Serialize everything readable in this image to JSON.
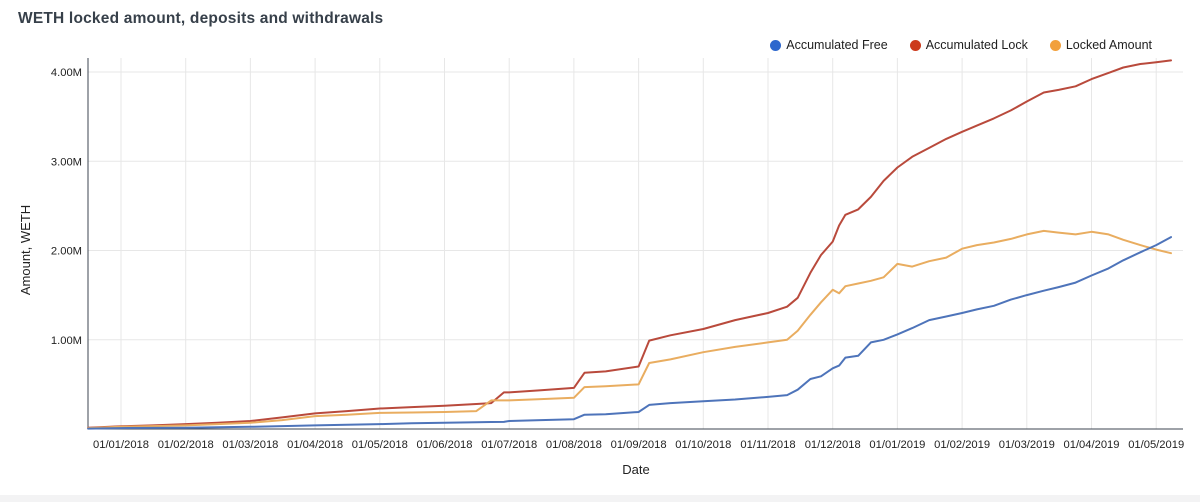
{
  "title": "WETH locked amount, deposits and withdrawals",
  "axes": {
    "x_label": "Date",
    "y_label": "Amount, WETH",
    "y_tick_labels": [
      "1.00M",
      "2.00M",
      "3.00M",
      "4.00M"
    ],
    "y_tick_values_m": [
      1,
      2,
      3,
      4
    ]
  },
  "style": {
    "grid_color": "#e7e7e7",
    "axis_color": "#3c4650",
    "background": "#ffffff"
  },
  "chart_data": {
    "type": "line",
    "title": "WETH locked amount, deposits and withdrawals",
    "xlabel": "Date",
    "ylabel": "Amount, WETH",
    "ylim_m": [
      0,
      4.2
    ],
    "grid": true,
    "legend_position": "top-right",
    "x_tick_labels": [
      "01/01/2018",
      "01/02/2018",
      "01/03/2018",
      "01/04/2018",
      "01/05/2018",
      "01/06/2018",
      "01/07/2018",
      "01/08/2018",
      "01/09/2018",
      "01/10/2018",
      "01/11/2018",
      "01/12/2018",
      "01/01/2019",
      "01/02/2019",
      "01/03/2019",
      "01/04/2019",
      "01/05/2019"
    ],
    "x": [
      "12/16/2017",
      "01/01/2018",
      "01/16/2018",
      "02/01/2018",
      "02/16/2018",
      "03/01/2018",
      "03/16/2018",
      "04/01/2018",
      "04/16/2018",
      "05/01/2018",
      "05/16/2018",
      "06/01/2018",
      "06/16/2018",
      "06/23/2018",
      "06/29/2018",
      "07/01/2018",
      "07/16/2018",
      "08/01/2018",
      "08/06/2018",
      "08/16/2018",
      "09/01/2018",
      "09/06/2018",
      "09/16/2018",
      "10/01/2018",
      "10/16/2018",
      "11/01/2018",
      "11/10/2018",
      "11/15/2018",
      "11/21/2018",
      "11/26/2018",
      "12/01/2018",
      "12/04/2018",
      "12/07/2018",
      "12/13/2018",
      "12/19/2018",
      "12/25/2018",
      "01/01/2019",
      "01/08/2019",
      "01/16/2019",
      "01/24/2019",
      "02/01/2019",
      "02/08/2019",
      "02/16/2019",
      "02/24/2019",
      "03/01/2019",
      "03/09/2019",
      "03/16/2019",
      "03/24/2019",
      "04/01/2019",
      "04/09/2019",
      "04/16/2019",
      "04/24/2019",
      "05/01/2019",
      "05/08/2019"
    ],
    "units": "values in millions of WETH",
    "series": [
      {
        "name": "Accumulated Free",
        "color": "#2d67cd",
        "line_color": "#4e74ba",
        "values_m": [
          0.005,
          0.01,
          0.012,
          0.015,
          0.02,
          0.025,
          0.032,
          0.04,
          0.048,
          0.055,
          0.065,
          0.07,
          0.075,
          0.078,
          0.08,
          0.09,
          0.1,
          0.11,
          0.16,
          0.165,
          0.19,
          0.27,
          0.29,
          0.31,
          0.33,
          0.36,
          0.38,
          0.44,
          0.56,
          0.59,
          0.68,
          0.71,
          0.8,
          0.82,
          0.97,
          1.0,
          1.06,
          1.13,
          1.22,
          1.26,
          1.3,
          1.34,
          1.38,
          1.45,
          1.5,
          1.55,
          1.59,
          1.64,
          1.72,
          1.8,
          1.89,
          1.98,
          2.06,
          2.15
        ]
      },
      {
        "name": "Accumulated Lock",
        "color": "#cc3a1c",
        "line_color": "#b94a3c",
        "values_m": [
          0.015,
          0.03,
          0.04,
          0.055,
          0.07,
          0.09,
          0.13,
          0.175,
          0.2,
          0.23,
          0.245,
          0.26,
          0.28,
          0.29,
          0.41,
          0.41,
          0.435,
          0.46,
          0.63,
          0.645,
          0.7,
          0.99,
          1.05,
          1.12,
          1.22,
          1.3,
          1.37,
          1.47,
          1.75,
          1.95,
          2.1,
          2.28,
          2.4,
          2.46,
          2.6,
          2.78,
          2.93,
          3.05,
          3.15,
          3.25,
          3.33,
          3.4,
          3.48,
          3.57,
          3.67,
          3.77,
          3.8,
          3.84,
          3.92,
          3.99,
          4.05,
          4.09,
          4.11,
          4.13
        ]
      },
      {
        "name": "Locked Amount",
        "color": "#f2a03c",
        "line_color": "#e9ad60",
        "values_m": [
          0.01,
          0.025,
          0.032,
          0.04,
          0.055,
          0.07,
          0.1,
          0.145,
          0.16,
          0.18,
          0.185,
          0.19,
          0.2,
          0.32,
          0.32,
          0.32,
          0.335,
          0.35,
          0.47,
          0.48,
          0.5,
          0.74,
          0.78,
          0.86,
          0.92,
          0.97,
          1.0,
          1.1,
          1.28,
          1.42,
          1.56,
          1.52,
          1.6,
          1.63,
          1.66,
          1.7,
          1.85,
          1.82,
          1.88,
          1.92,
          2.02,
          2.06,
          2.09,
          2.13,
          2.18,
          2.22,
          2.2,
          2.18,
          2.21,
          2.18,
          2.12,
          2.06,
          2.01,
          1.97
        ]
      }
    ]
  }
}
